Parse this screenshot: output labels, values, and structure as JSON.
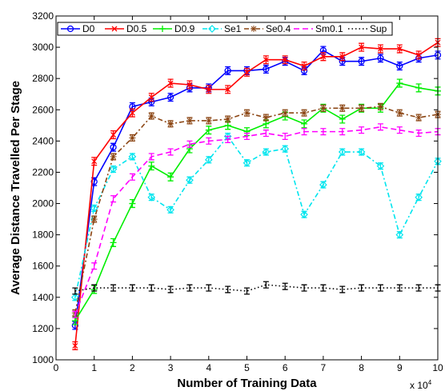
{
  "chart_data": {
    "type": "line",
    "xlabel": "Number of Training Data",
    "ylabel": "Average Distance Travelled Per Stage",
    "x_multiplier_label": "x 10",
    "x_multiplier_exp": "4",
    "xlim": [
      0,
      10
    ],
    "ylim": [
      1000,
      3200
    ],
    "xticks": [
      0,
      1,
      2,
      3,
      4,
      5,
      6,
      7,
      8,
      9,
      10
    ],
    "yticks": [
      1000,
      1200,
      1400,
      1600,
      1800,
      2000,
      2200,
      2400,
      2600,
      2800,
      3000,
      3200
    ],
    "grid": false,
    "legend_placement": "top",
    "x": [
      0.5,
      1,
      1.5,
      2,
      2.5,
      3,
      3.5,
      4,
      4.5,
      5,
      5.5,
      6,
      6.5,
      7,
      7.5,
      8,
      8.5,
      9,
      9.5,
      10
    ],
    "series": [
      {
        "name": "D0",
        "color": "#0000ff",
        "dash": "",
        "marker": "circle",
        "err": 25,
        "values": [
          1220,
          2140,
          2360,
          2620,
          2650,
          2680,
          2740,
          2740,
          2850,
          2850,
          2860,
          2910,
          2850,
          2980,
          2910,
          2910,
          2930,
          2880,
          2930,
          2950
        ]
      },
      {
        "name": "D0.5",
        "color": "#ff0000",
        "dash": "",
        "marker": "x",
        "err": 25,
        "values": [
          1090,
          2270,
          2440,
          2580,
          2680,
          2770,
          2760,
          2730,
          2730,
          2840,
          2920,
          2920,
          2880,
          2940,
          2940,
          3000,
          2990,
          2990,
          2950,
          3030
        ]
      },
      {
        "name": "D0.9",
        "color": "#00ee00",
        "dash": "",
        "marker": "plus",
        "err": 25,
        "values": [
          1250,
          1450,
          1750,
          2000,
          2240,
          2170,
          2350,
          2470,
          2500,
          2460,
          2510,
          2560,
          2510,
          2610,
          2540,
          2610,
          2610,
          2770,
          2740,
          2720
        ]
      },
      {
        "name": "Se1",
        "color": "#00e5ee",
        "dash": "6,3,2,3",
        "marker": "diamond",
        "err": 20,
        "values": [
          1400,
          1970,
          2220,
          2300,
          2040,
          1960,
          2150,
          2280,
          2430,
          2260,
          2330,
          2350,
          1930,
          2120,
          2330,
          2330,
          2240,
          1800,
          2040,
          2270
        ]
      },
      {
        "name": "Se0.4",
        "color": "#8b4513",
        "dash": "6,3,2,3",
        "marker": "star",
        "err": 20,
        "values": [
          1300,
          1900,
          2300,
          2420,
          2560,
          2510,
          2530,
          2530,
          2540,
          2580,
          2550,
          2580,
          2580,
          2610,
          2610,
          2610,
          2620,
          2580,
          2550,
          2570
        ]
      },
      {
        "name": "Sm0.1",
        "color": "#ff00ff",
        "dash": "7,4",
        "marker": "none",
        "err": 20,
        "values": [
          1290,
          1600,
          2030,
          2170,
          2300,
          2330,
          2380,
          2400,
          2410,
          2430,
          2450,
          2430,
          2460,
          2460,
          2460,
          2470,
          2490,
          2470,
          2450,
          2460
        ]
      },
      {
        "name": "Sup",
        "color": "#000000",
        "dash": "1.5,3",
        "marker": "none",
        "err": 20,
        "values": [
          1440,
          1460,
          1460,
          1460,
          1460,
          1450,
          1460,
          1460,
          1450,
          1440,
          1480,
          1470,
          1460,
          1460,
          1450,
          1460,
          1460,
          1460,
          1460,
          1460
        ]
      }
    ]
  }
}
